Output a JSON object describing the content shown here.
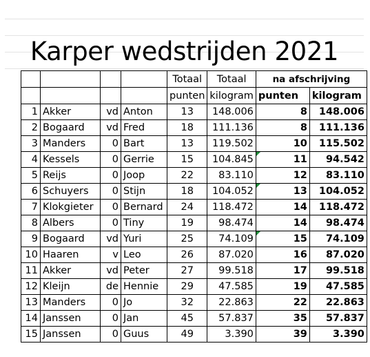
{
  "title": "Karper wedstrijden 2021",
  "headers": {
    "totaal1": "Totaal",
    "totaal2": "Totaal",
    "na_afschrijving": "na afschrijving",
    "punten": "punten",
    "kilogram": "kilogram",
    "punten_bold": "punten",
    "kilogram_bold": "kilogram"
  },
  "rows": [
    {
      "nr": "1",
      "name": "Akker",
      "prefix": "vd",
      "first": "Anton",
      "pts": "13",
      "kg": "148.006",
      "pts2": "8",
      "kg2": "148.006"
    },
    {
      "nr": "2",
      "name": "Bogaard",
      "prefix": "vd",
      "first": "Fred",
      "pts": "18",
      "kg": "111.136",
      "pts2": "8",
      "kg2": "111.136"
    },
    {
      "nr": "3",
      "name": "Manders",
      "prefix": "0",
      "first": "Bart",
      "pts": "13",
      "kg": "119.502",
      "pts2": "10",
      "kg2": "115.502"
    },
    {
      "nr": "4",
      "name": "Kessels",
      "prefix": "0",
      "first": "Gerrie",
      "pts": "15",
      "kg": "104.845",
      "pts2": "11",
      "kg2": "94.542"
    },
    {
      "nr": "5",
      "name": "Reijs",
      "prefix": "0",
      "first": "Joop",
      "pts": "22",
      "kg": "83.110",
      "pts2": "12",
      "kg2": "83.110"
    },
    {
      "nr": "6",
      "name": "Schuyers",
      "prefix": "0",
      "first": "Stijn",
      "pts": "18",
      "kg": "104.052",
      "pts2": "13",
      "kg2": "104.052"
    },
    {
      "nr": "7",
      "name": "Klokgieter",
      "prefix": "0",
      "first": "Bernard",
      "pts": "24",
      "kg": "118.472",
      "pts2": "14",
      "kg2": "118.472"
    },
    {
      "nr": "8",
      "name": "Albers",
      "prefix": "0",
      "first": "Tiny",
      "pts": "19",
      "kg": "98.474",
      "pts2": "14",
      "kg2": "98.474"
    },
    {
      "nr": "9",
      "name": "Bogaard",
      "prefix": "vd",
      "first": "Yuri",
      "pts": "25",
      "kg": "74.109",
      "pts2": "15",
      "kg2": "74.109"
    },
    {
      "nr": "10",
      "name": "Haaren",
      "prefix": "v",
      "first": "Leo",
      "pts": "26",
      "kg": "87.020",
      "pts2": "16",
      "kg2": "87.020"
    },
    {
      "nr": "11",
      "name": "Akker",
      "prefix": "vd",
      "first": "Peter",
      "pts": "27",
      "kg": "99.518",
      "pts2": "17",
      "kg2": "99.518"
    },
    {
      "nr": "12",
      "name": "Kleijn",
      "prefix": "de",
      "first": "Hennie",
      "pts": "29",
      "kg": "47.585",
      "pts2": "19",
      "kg2": "47.585"
    },
    {
      "nr": "13",
      "name": "Manders",
      "prefix": "0",
      "first": "Jo",
      "pts": "32",
      "kg": "22.863",
      "pts2": "22",
      "kg2": "22.863"
    },
    {
      "nr": "14",
      "name": "Janssen",
      "prefix": "0",
      "first": "Jan",
      "pts": "45",
      "kg": "57.837",
      "pts2": "35",
      "kg2": "57.837"
    },
    {
      "nr": "15",
      "name": "Janssen",
      "prefix": "0",
      "first": "Guus",
      "pts": "49",
      "kg": "3.390",
      "pts2": "39",
      "kg2": "3.390"
    }
  ]
}
